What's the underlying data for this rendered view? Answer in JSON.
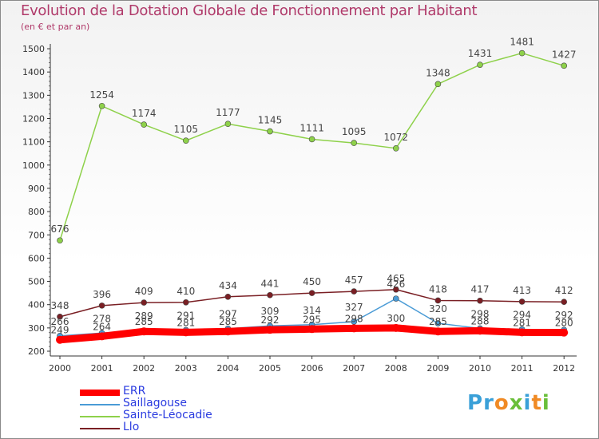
{
  "chart_data": {
    "type": "line",
    "title": "Evolution de la Dotation Globale de Fonctionnement par Habitant",
    "subtitle": "(en € et par an)",
    "xlabel": "",
    "ylabel": "",
    "ylim": [
      200,
      1500
    ],
    "yticks": [
      200,
      300,
      400,
      500,
      600,
      700,
      800,
      900,
      1000,
      1100,
      1200,
      1300,
      1400,
      1500
    ],
    "categories": [
      "2000",
      "2001",
      "2002",
      "2003",
      "2004",
      "2005",
      "2006",
      "2007",
      "2008",
      "2009",
      "2010",
      "2011",
      "2012"
    ],
    "grid": false,
    "series": [
      {
        "name": "ERR",
        "color": "#ff0000",
        "values": [
          249,
          264,
          285,
          281,
          285,
          292,
          295,
          298,
          300,
          285,
          288,
          281,
          280
        ]
      },
      {
        "name": "Saillagouse",
        "color": "#4a9bd6",
        "values": [
          266,
          278,
          289,
          291,
          297,
          309,
          314,
          327,
          426,
          320,
          298,
          294,
          292
        ]
      },
      {
        "name": "Sainte-Léocadie",
        "color": "#8ed14a",
        "values": [
          676,
          1254,
          1174,
          1105,
          1177,
          1145,
          1111,
          1095,
          1072,
          1348,
          1431,
          1481,
          1427
        ]
      },
      {
        "name": "Llo",
        "color": "#7a1f24",
        "values": [
          348,
          396,
          409,
          410,
          434,
          441,
          450,
          457,
          465,
          418,
          417,
          413,
          412
        ]
      }
    ],
    "legend_position": "bottom-left"
  },
  "logo": {
    "text": "Proxiti",
    "letters": [
      "P",
      "r",
      "o",
      "x",
      "i",
      "t",
      "i"
    ],
    "colors": [
      "#3aa0d8",
      "#3aa0d8",
      "#f08a24",
      "#6abf3a",
      "#3aa0d8",
      "#f08a24",
      "#6abf3a"
    ]
  }
}
